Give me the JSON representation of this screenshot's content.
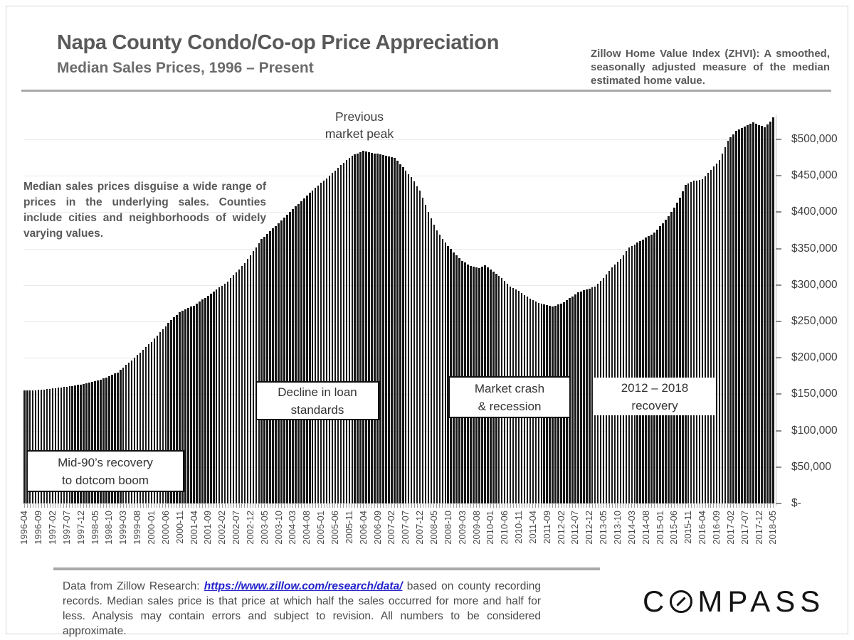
{
  "colors": {
    "bar": "#191919",
    "gridline": "#e9e9e9",
    "link_blue": "#2222cc",
    "text_gray": "#595959"
  },
  "header": {
    "title": "Napa County Condo/Co-op Price Appreciation",
    "subtitle": "Median Sales Prices, 1996 – Present",
    "zhvi_note": "Zillow Home Value Index (ZHVI): A smoothed, seasonally adjusted measure of the median estimated home value."
  },
  "annotations": {
    "median_note": "Median sales prices disguise a wide range of prices in the underlying sales. Counties include cities and neighborhoods of widely varying values.",
    "peak": {
      "line1": "Previous",
      "line2": "market peak"
    },
    "boxes": [
      {
        "line1": "Mid-90’s recovery",
        "line2": "to dotcom boom"
      },
      {
        "line1": "Decline in loan",
        "line2": "standards"
      },
      {
        "line1": "Market crash",
        "line2": "& recession"
      },
      {
        "line1": "2012 – 2018",
        "line2": "recovery"
      }
    ]
  },
  "chart_data": {
    "type": "bar",
    "title": "Napa County Condo/Co-op Median Sales Prices (Zillow Home Value Index), monthly",
    "x_unit": "month",
    "x_range": [
      "1996-04",
      "2018-05"
    ],
    "months_count": 266,
    "x_tick_step_months": 5,
    "x_tick_labels": [
      "1996-04",
      "1996-09",
      "1997-02",
      "1997-07",
      "1997-12",
      "1998-05",
      "1998-10",
      "1999-03",
      "1999-08",
      "2000-01",
      "2000-06",
      "2000-11",
      "2001-04",
      "2001-09",
      "2002-02",
      "2002-07",
      "2002-12",
      "2003-05",
      "2003-10",
      "2004-03",
      "2004-08",
      "2005-01",
      "2005-06",
      "2005-11",
      "2006-04",
      "2006-09",
      "2007-02",
      "2007-07",
      "2007-12",
      "2008-05",
      "2008-10",
      "2009-03",
      "2009-08",
      "2010-01",
      "2010-06",
      "2010-11",
      "2011-04",
      "2011-09",
      "2012-02",
      "2012-07",
      "2012-12",
      "2013-05",
      "2013-10",
      "2014-03",
      "2014-08",
      "2015-01",
      "2015-06",
      "2015-11",
      "2016-04",
      "2016-09",
      "2017-02",
      "2017-07",
      "2017-12",
      "2018-05"
    ],
    "y_ticks": [
      {
        "label": "$-",
        "value": 0
      },
      {
        "label": "$50,000",
        "value": 50000
      },
      {
        "label": "$100,000",
        "value": 100000
      },
      {
        "label": "$150,000",
        "value": 150000
      },
      {
        "label": "$200,000",
        "value": 200000
      },
      {
        "label": "$250,000",
        "value": 250000
      },
      {
        "label": "$300,000",
        "value": 300000
      },
      {
        "label": "$350,000",
        "value": 350000
      },
      {
        "label": "$400,000",
        "value": 400000
      },
      {
        "label": "$450,000",
        "value": 450000
      },
      {
        "label": "$500,000",
        "value": 500000
      }
    ],
    "ylim": [
      0,
      540000
    ],
    "grid": true,
    "interpolation": "linear",
    "anchor_points_month_value": [
      [
        0,
        155000
      ],
      [
        6,
        156000
      ],
      [
        10,
        158000
      ],
      [
        16,
        161000
      ],
      [
        21,
        164000
      ],
      [
        27,
        170000
      ],
      [
        33,
        180000
      ],
      [
        39,
        200000
      ],
      [
        45,
        222000
      ],
      [
        51,
        248000
      ],
      [
        55,
        263000
      ],
      [
        60,
        272000
      ],
      [
        66,
        288000
      ],
      [
        72,
        305000
      ],
      [
        78,
        330000
      ],
      [
        84,
        363000
      ],
      [
        90,
        385000
      ],
      [
        96,
        408000
      ],
      [
        102,
        430000
      ],
      [
        108,
        450000
      ],
      [
        112,
        465000
      ],
      [
        116,
        478000
      ],
      [
        120,
        484000
      ],
      [
        124,
        481000
      ],
      [
        128,
        478000
      ],
      [
        131,
        475000
      ],
      [
        134,
        462000
      ],
      [
        137,
        448000
      ],
      [
        140,
        430000
      ],
      [
        143,
        400000
      ],
      [
        146,
        375000
      ],
      [
        149,
        358000
      ],
      [
        152,
        345000
      ],
      [
        155,
        333000
      ],
      [
        158,
        326000
      ],
      [
        161,
        323000
      ],
      [
        163,
        327000
      ],
      [
        166,
        318000
      ],
      [
        169,
        310000
      ],
      [
        172,
        298000
      ],
      [
        175,
        292000
      ],
      [
        178,
        284000
      ],
      [
        181,
        277000
      ],
      [
        184,
        273000
      ],
      [
        187,
        271000
      ],
      [
        190,
        274000
      ],
      [
        193,
        282000
      ],
      [
        196,
        290000
      ],
      [
        199,
        294000
      ],
      [
        202,
        298000
      ],
      [
        205,
        310000
      ],
      [
        208,
        324000
      ],
      [
        211,
        336000
      ],
      [
        214,
        352000
      ],
      [
        217,
        358000
      ],
      [
        220,
        365000
      ],
      [
        223,
        372000
      ],
      [
        226,
        385000
      ],
      [
        229,
        400000
      ],
      [
        232,
        420000
      ],
      [
        234,
        438000
      ],
      [
        237,
        443000
      ],
      [
        240,
        445000
      ],
      [
        243,
        458000
      ],
      [
        246,
        472000
      ],
      [
        249,
        498000
      ],
      [
        252,
        512000
      ],
      [
        255,
        518000
      ],
      [
        258,
        523000
      ],
      [
        260,
        520000
      ],
      [
        262,
        517000
      ],
      [
        264,
        524000
      ],
      [
        265,
        530000
      ]
    ]
  },
  "footer": {
    "pre_link": "Data from Zillow Research: ",
    "link": "https://www.zillow.com/research/data/",
    "post_link": " based on county recording records. Median sales price is that price at which half the sales occurred for more and half for less. Analysis may contain errors and subject to revision. All numbers to be considered approximate."
  },
  "logo": {
    "name": "COMPASS",
    "part1": "C",
    "part2": "MPASS"
  }
}
